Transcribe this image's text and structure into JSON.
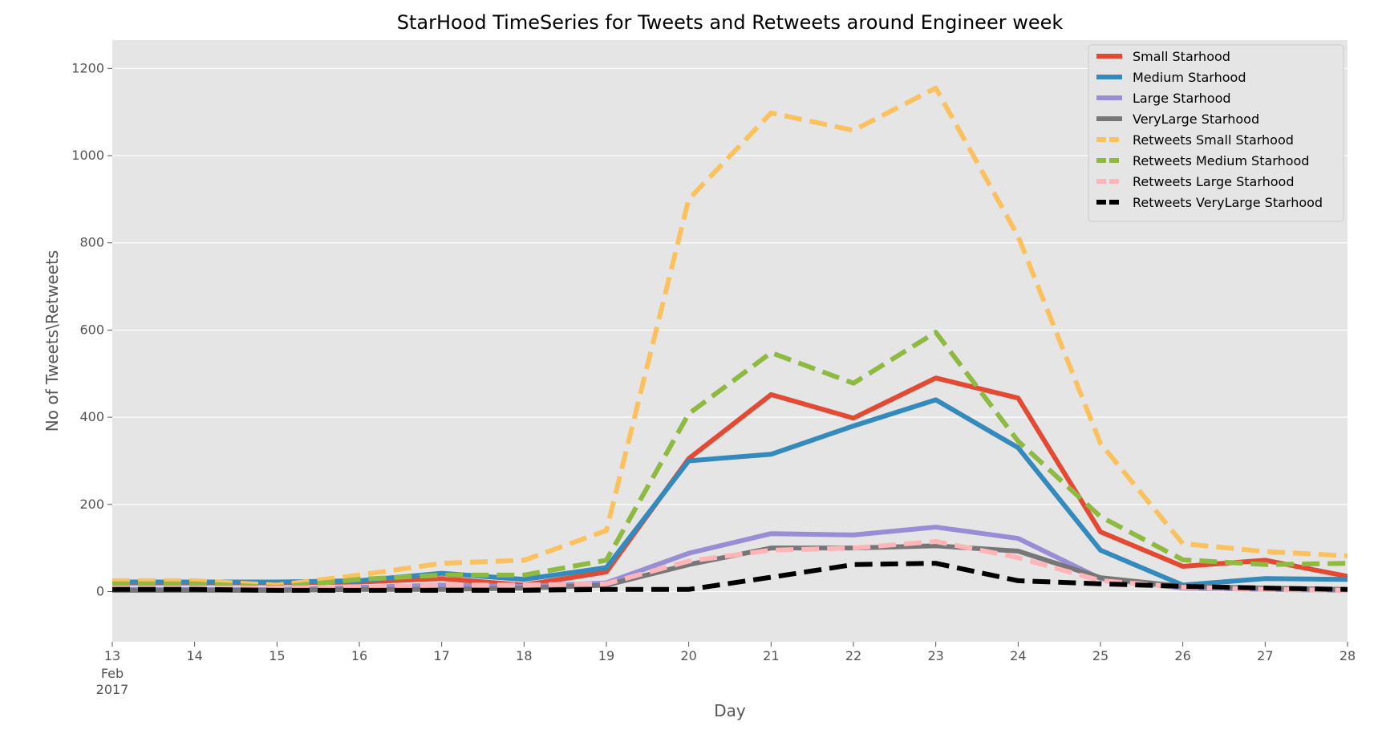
{
  "chart_data": {
    "type": "line",
    "title": "StarHood TimeSeries for Tweets and Retweets around Engineer week",
    "xlabel": "Day",
    "ylabel": "No of Tweets\\Retweets",
    "ylim": [
      -115,
      1265
    ],
    "yticks": [
      0,
      200,
      400,
      600,
      800,
      1000,
      1200
    ],
    "x": [
      "13",
      "14",
      "15",
      "16",
      "17",
      "18",
      "19",
      "20",
      "21",
      "22",
      "23",
      "24",
      "25",
      "26",
      "27",
      "28"
    ],
    "x_first_sublabels": [
      "Feb",
      "2017"
    ],
    "grid": true,
    "legend_position": "top-right",
    "colors": {
      "plot_background": "#e5e5e5",
      "grid": "#ffffff"
    },
    "series": [
      {
        "name": "Small Starhood",
        "color": "#e24a33",
        "dashed": false,
        "values": [
          20,
          20,
          20,
          22,
          30,
          15,
          45,
          305,
          452,
          398,
          490,
          444,
          137,
          58,
          72,
          35
        ]
      },
      {
        "name": "Medium Starhood",
        "color": "#348abd",
        "dashed": false,
        "values": [
          22,
          22,
          22,
          25,
          42,
          28,
          55,
          300,
          315,
          380,
          440,
          330,
          95,
          15,
          30,
          28
        ]
      },
      {
        "name": "Large Starhood",
        "color": "#988ed5",
        "dashed": false,
        "values": [
          5,
          5,
          5,
          10,
          15,
          12,
          20,
          88,
          133,
          130,
          148,
          122,
          30,
          8,
          5,
          3
        ]
      },
      {
        "name": "VeryLarge Starhood",
        "color": "#777777",
        "dashed": false,
        "values": [
          3,
          3,
          3,
          5,
          5,
          8,
          15,
          62,
          100,
          100,
          105,
          93,
          32,
          12,
          8,
          5
        ]
      },
      {
        "name": "Retweets Small Starhood",
        "color": "#fbc15e",
        "dashed": true,
        "values": [
          25,
          25,
          15,
          38,
          65,
          72,
          140,
          900,
          1098,
          1058,
          1155,
          815,
          340,
          110,
          92,
          82
        ]
      },
      {
        "name": "Retweets Medium Starhood",
        "color": "#8eba42",
        "dashed": true,
        "values": [
          18,
          18,
          10,
          28,
          38,
          38,
          72,
          408,
          548,
          478,
          595,
          345,
          172,
          73,
          62,
          65
        ]
      },
      {
        "name": "Retweets Large Starhood",
        "color": "#ffb5b8",
        "dashed": true,
        "values": [
          8,
          8,
          8,
          10,
          15,
          15,
          18,
          70,
          95,
          100,
          115,
          78,
          25,
          10,
          5,
          3
        ]
      },
      {
        "name": "Retweets VeryLarge Starhood",
        "color": "#000000",
        "dashed": true,
        "values": [
          5,
          5,
          3,
          3,
          3,
          3,
          5,
          5,
          33,
          62,
          65,
          25,
          18,
          12,
          8,
          5
        ]
      }
    ]
  }
}
